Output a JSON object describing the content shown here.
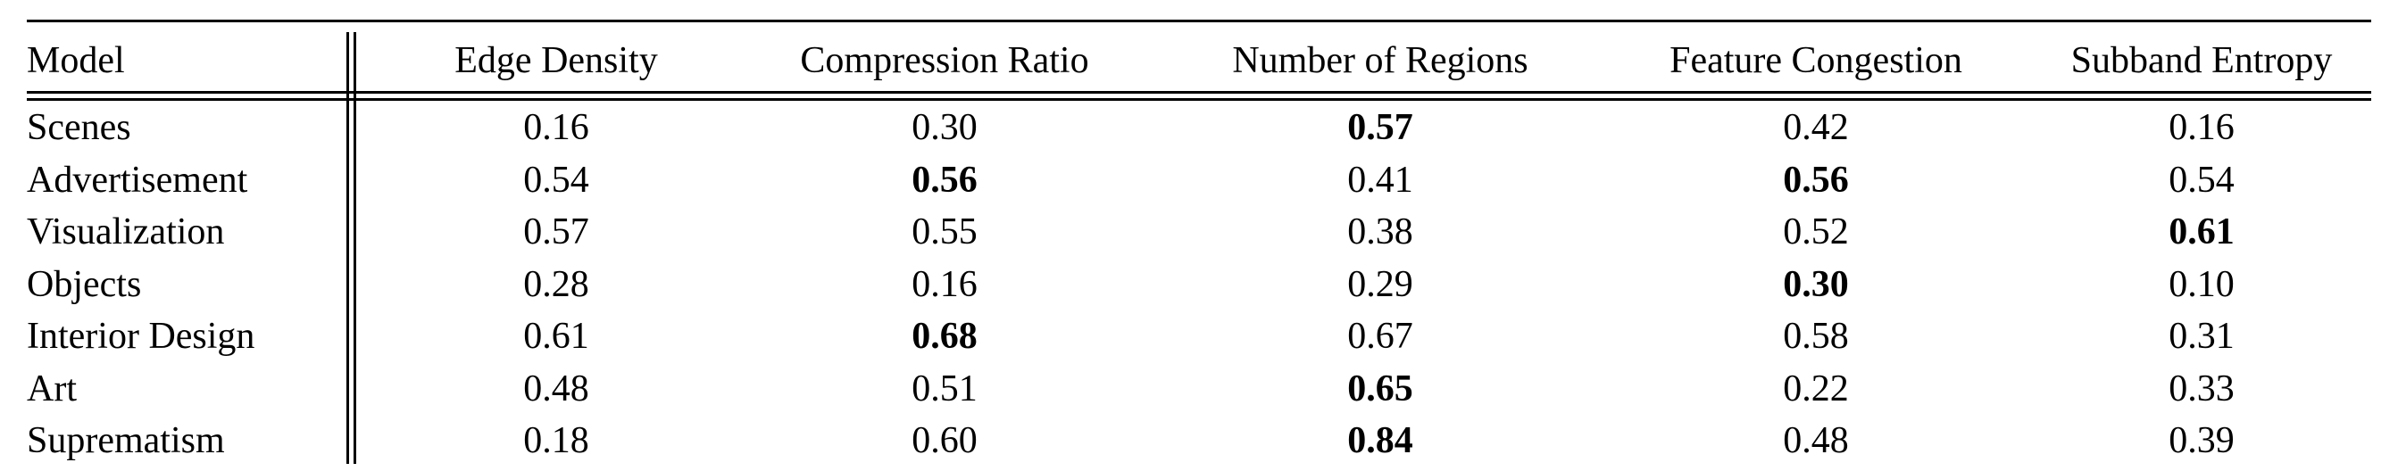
{
  "table": {
    "headers": [
      "Model",
      "Edge Density",
      "Compression Ratio",
      "Number of Regions",
      "Feature Congestion",
      "Subband Entropy"
    ],
    "rows": [
      {
        "model": "Scenes",
        "values": [
          "0.16",
          "0.30",
          "0.57",
          "0.42",
          "0.16"
        ],
        "bold": [
          false,
          false,
          true,
          false,
          false
        ]
      },
      {
        "model": "Advertisement",
        "values": [
          "0.54",
          "0.56",
          "0.41",
          "0.56",
          "0.54"
        ],
        "bold": [
          false,
          true,
          false,
          true,
          false
        ]
      },
      {
        "model": "Visualization",
        "values": [
          "0.57",
          "0.55",
          "0.38",
          "0.52",
          "0.61"
        ],
        "bold": [
          false,
          false,
          false,
          false,
          true
        ]
      },
      {
        "model": "Objects",
        "values": [
          "0.28",
          "0.16",
          "0.29",
          "0.30",
          "0.10"
        ],
        "bold": [
          false,
          false,
          false,
          true,
          false
        ]
      },
      {
        "model": "Interior Design",
        "values": [
          "0.61",
          "0.68",
          "0.67",
          "0.58",
          "0.31"
        ],
        "bold": [
          false,
          true,
          false,
          false,
          false
        ]
      },
      {
        "model": "Art",
        "values": [
          "0.48",
          "0.51",
          "0.65",
          "0.22",
          "0.33"
        ],
        "bold": [
          false,
          false,
          true,
          false,
          false
        ]
      },
      {
        "model": "Suprematism",
        "values": [
          "0.18",
          "0.60",
          "0.84",
          "0.48",
          "0.39"
        ],
        "bold": [
          false,
          false,
          true,
          false,
          false
        ]
      }
    ]
  }
}
